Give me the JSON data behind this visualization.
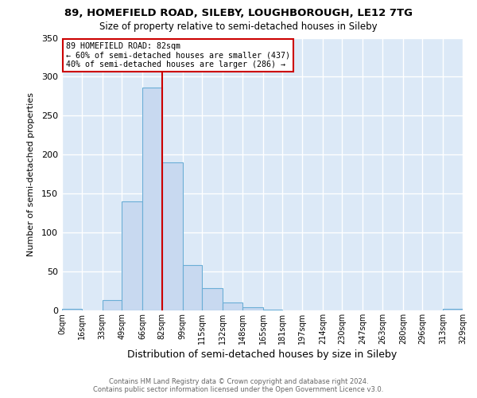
{
  "title1": "89, HOMEFIELD ROAD, SILEBY, LOUGHBOROUGH, LE12 7TG",
  "title2": "Size of property relative to semi-detached houses in Sileby",
  "xlabel": "Distribution of semi-detached houses by size in Sileby",
  "ylabel": "Number of semi-detached properties",
  "bin_edges": [
    0,
    16,
    33,
    49,
    66,
    82,
    99,
    115,
    132,
    148,
    165,
    181,
    197,
    214,
    230,
    247,
    263,
    280,
    296,
    313,
    329
  ],
  "bin_counts": [
    2,
    0,
    13,
    140,
    286,
    190,
    58,
    29,
    10,
    4,
    1,
    0,
    0,
    0,
    0,
    0,
    0,
    0,
    0,
    2
  ],
  "bar_color": "#c8d9f0",
  "bar_edge_color": "#6baed6",
  "vline_x": 82,
  "vline_color": "#cc0000",
  "annotation_title": "89 HOMEFIELD ROAD: 82sqm",
  "annotation_line1": "← 60% of semi-detached houses are smaller (437)",
  "annotation_line2": "40% of semi-detached houses are larger (286) →",
  "annotation_box_color": "#ffffff",
  "annotation_box_edge": "#cc0000",
  "tick_labels": [
    "0sqm",
    "16sqm",
    "33sqm",
    "49sqm",
    "66sqm",
    "82sqm",
    "99sqm",
    "115sqm",
    "132sqm",
    "148sqm",
    "165sqm",
    "181sqm",
    "197sqm",
    "214sqm",
    "230sqm",
    "247sqm",
    "263sqm",
    "280sqm",
    "296sqm",
    "313sqm",
    "329sqm"
  ],
  "ylim": [
    0,
    350
  ],
  "footer1": "Contains HM Land Registry data © Crown copyright and database right 2024.",
  "footer2": "Contains public sector information licensed under the Open Government Licence v3.0.",
  "fig_bg_color": "#ffffff",
  "plot_bg_color": "#dce9f7",
  "grid_color": "#ffffff"
}
